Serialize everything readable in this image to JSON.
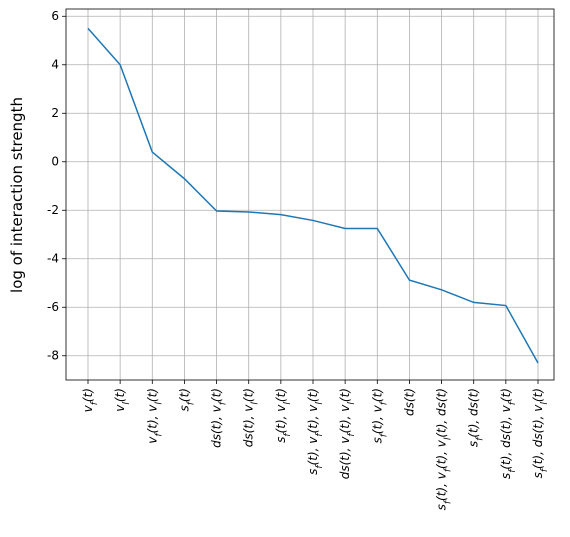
{
  "chart_data": {
    "type": "line",
    "y_label": "log of interaction strength",
    "categories": [
      "vf(t)",
      "vl(t)",
      "vf(t), vl(t)",
      "sf(t)",
      "ds(t), vf(t)",
      "ds(t), vl(t)",
      "sf(t), vl(t)",
      "sf(t), vf(t), vl(t)",
      "ds(t), vf(t), vl(t)",
      "sf(t), vf(t)",
      "ds(t)",
      "sf(t), vf(t), vl(t), ds(t)",
      "sf(t), ds(t)",
      "sf(t), ds(t), vf(t)",
      "sf(t), ds(t), vl(t)"
    ],
    "series": [
      {
        "name": "interaction strength",
        "color": "#1f77b4",
        "values": [
          5.5,
          4.0,
          0.4,
          -0.7,
          -2.03,
          -2.07,
          -2.18,
          -2.42,
          -2.75,
          -2.75,
          -4.88,
          -5.28,
          -5.8,
          -5.93,
          -8.3
        ]
      }
    ],
    "ylim": [
      -9,
      6.3
    ],
    "yticks": [
      -8,
      -6,
      -4,
      -2,
      0,
      2,
      4,
      6
    ],
    "grid": true
  }
}
